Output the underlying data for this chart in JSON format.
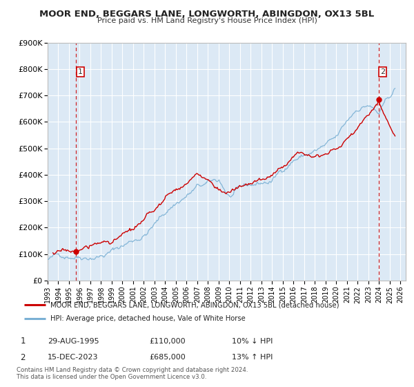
{
  "title": "MOOR END, BEGGARS LANE, LONGWORTH, ABINGDON, OX13 5BL",
  "subtitle": "Price paid vs. HM Land Registry's House Price Index (HPI)",
  "bg_color": "#dce9f5",
  "fig_bg_color": "#ffffff",
  "red_line_color": "#cc0000",
  "blue_line_color": "#7ab0d4",
  "marker_color": "#cc0000",
  "dashed_line_color": "#cc0000",
  "ylim": [
    0,
    900000
  ],
  "xlim_start": 1993.0,
  "xlim_end": 2026.5,
  "ytick_labels": [
    "£0",
    "£100K",
    "£200K",
    "£300K",
    "£400K",
    "£500K",
    "£600K",
    "£700K",
    "£800K",
    "£900K"
  ],
  "ytick_values": [
    0,
    100000,
    200000,
    300000,
    400000,
    500000,
    600000,
    700000,
    800000,
    900000
  ],
  "xtick_years": [
    1993,
    1994,
    1995,
    1996,
    1997,
    1998,
    1999,
    2000,
    2001,
    2002,
    2003,
    2004,
    2005,
    2006,
    2007,
    2008,
    2009,
    2010,
    2011,
    2012,
    2013,
    2014,
    2015,
    2016,
    2017,
    2018,
    2019,
    2020,
    2021,
    2022,
    2023,
    2024,
    2025,
    2026
  ],
  "point1": {
    "date_num": 1995.66,
    "value": 110000,
    "label": "1",
    "date_str": "29-AUG-1995",
    "price_str": "£110,000",
    "hpi_str": "10% ↓ HPI"
  },
  "point2": {
    "date_num": 2023.96,
    "value": 685000,
    "label": "2",
    "date_str": "15-DEC-2023",
    "price_str": "£685,000",
    "hpi_str": "13% ↑ HPI"
  },
  "legend_red_label": "MOOR END, BEGGARS LANE, LONGWORTH, ABINGDON, OX13 5BL (detached house)",
  "legend_blue_label": "HPI: Average price, detached house, Vale of White Horse",
  "table_row1": [
    "1",
    "29-AUG-1995",
    "£110,000",
    "10% ↓ HPI"
  ],
  "table_row2": [
    "2",
    "15-DEC-2023",
    "£685,000",
    "13% ↑ HPI"
  ],
  "footnote1": "Contains HM Land Registry data © Crown copyright and database right 2024.",
  "footnote2": "This data is licensed under the Open Government Licence v3.0."
}
